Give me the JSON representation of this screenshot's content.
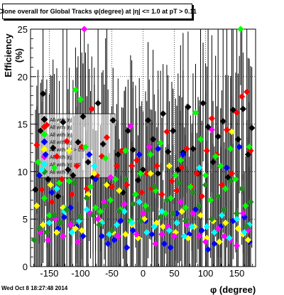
{
  "title": "Clone  overall for Global Tracks φ(degree) at |η| <= 1.0 at pT > 0.11",
  "timestamp": "Wed Oct  8 18:27:48 2014",
  "chart_data": {
    "type": "scatter",
    "title": "Clone  overall for Global Tracks φ(degree) at |η| <= 1.0 at pT > 0.11",
    "xlabel": "φ (degree)",
    "ylabel": "Efficiency (%)",
    "xlim": [
      -180,
      180
    ],
    "ylim": [
      0,
      25
    ],
    "x_ticks": [
      -150,
      -100,
      -50,
      0,
      50,
      100,
      150
    ],
    "y_ticks": [
      0,
      5,
      10,
      15,
      20,
      25
    ],
    "grid": true,
    "legend_position": "left-center",
    "legend_entries": [
      "All with |η|",
      "All with |η|",
      "All with |η|",
      "All with |η|",
      "All with |η| > 0.5",
      "All with |η|",
      "All with |η| > 0",
      "All with |η|"
    ],
    "series": [
      {
        "color": "#000000",
        "points": [
          [
            -172,
            8.1
          ],
          [
            -164,
            14.3
          ],
          [
            -160,
            18.2
          ],
          [
            -152,
            9.2
          ],
          [
            -144,
            12.5
          ],
          [
            -136,
            7.4
          ],
          [
            -128,
            15.2
          ],
          [
            -120,
            10.2
          ],
          [
            -112,
            9.6
          ],
          [
            -104,
            13.1
          ],
          [
            -96,
            15.8
          ],
          [
            -88,
            11.0
          ],
          [
            -80,
            9.4
          ],
          [
            -72,
            17.2
          ],
          [
            -64,
            12.9
          ],
          [
            -56,
            8.6
          ],
          [
            -48,
            15.4
          ],
          [
            -40,
            11.8
          ],
          [
            -32,
            7.8
          ],
          [
            -24,
            14.3
          ],
          [
            -16,
            12.3
          ],
          [
            -8,
            9.1
          ],
          [
            0,
            10.2
          ],
          [
            8,
            15.4
          ],
          [
            16,
            13.4
          ],
          [
            24,
            9.8
          ],
          [
            32,
            16.1
          ],
          [
            40,
            12.1
          ],
          [
            48,
            14.3
          ],
          [
            56,
            10.2
          ],
          [
            64,
            12.0
          ],
          [
            72,
            16.8
          ],
          [
            80,
            12.4
          ],
          [
            88,
            9.8
          ],
          [
            96,
            17.2
          ],
          [
            104,
            14.7
          ],
          [
            112,
            11.0
          ],
          [
            120,
            13.7
          ],
          [
            128,
            15.3
          ],
          [
            136,
            9.4
          ],
          [
            144,
            16.5
          ],
          [
            152,
            13.4
          ],
          [
            160,
            16.6
          ],
          [
            168,
            11.8
          ],
          [
            174,
            14.6
          ]
        ]
      },
      {
        "color": "#ff0000",
        "points": [
          [
            -170,
            12.8
          ],
          [
            -162,
            8.1
          ],
          [
            -154,
            14.9
          ],
          [
            -146,
            6.8
          ],
          [
            -138,
            11.6
          ],
          [
            -130,
            9.2
          ],
          [
            -122,
            13.2
          ],
          [
            -114,
            7.6
          ],
          [
            -106,
            10.6
          ],
          [
            -98,
            12.6
          ],
          [
            -90,
            8.2
          ],
          [
            -82,
            16.6
          ],
          [
            -74,
            9.6
          ],
          [
            -66,
            11.6
          ],
          [
            -58,
            13.6
          ],
          [
            -50,
            8.4
          ],
          [
            -42,
            10.6
          ],
          [
            -34,
            12.2
          ],
          [
            -26,
            8.6
          ],
          [
            -18,
            10.6
          ],
          [
            -10,
            11.2
          ],
          [
            -2,
            7.8
          ],
          [
            6,
            9.8
          ],
          [
            14,
            8.2
          ],
          [
            22,
            10.6
          ],
          [
            30,
            7.6
          ],
          [
            38,
            14.2
          ],
          [
            46,
            9.0
          ],
          [
            54,
            8.0
          ],
          [
            62,
            10.4
          ],
          [
            70,
            12.4
          ],
          [
            78,
            8.4
          ],
          [
            86,
            9.8
          ],
          [
            94,
            7.4
          ],
          [
            102,
            12.2
          ],
          [
            110,
            15.6
          ],
          [
            118,
            11.8
          ],
          [
            126,
            8.6
          ],
          [
            134,
            14.4
          ],
          [
            142,
            9.8
          ],
          [
            150,
            16.2
          ],
          [
            158,
            17.9
          ],
          [
            166,
            18.4
          ],
          [
            172,
            12.2
          ]
        ]
      },
      {
        "color": "#00ff00",
        "points": [
          [
            -168,
            11.0
          ],
          [
            -158,
            7.2
          ],
          [
            -150,
            5.4
          ],
          [
            -142,
            10.4
          ],
          [
            -134,
            8.8
          ],
          [
            -126,
            6.2
          ],
          [
            -118,
            9.0
          ],
          [
            -108,
            18.6
          ],
          [
            -100,
            17.6
          ],
          [
            -92,
            12.6
          ],
          [
            -84,
            8.4
          ],
          [
            -76,
            6.2
          ],
          [
            -68,
            5.8
          ],
          [
            -60,
            11.4
          ],
          [
            -52,
            7.0
          ],
          [
            -44,
            9.2
          ],
          [
            -36,
            6.0
          ],
          [
            -28,
            12.2
          ],
          [
            -20,
            4.8
          ],
          [
            -12,
            7.6
          ],
          [
            -4,
            9.8
          ],
          [
            4,
            6.4
          ],
          [
            12,
            11.8
          ],
          [
            20,
            8.0
          ],
          [
            28,
            13.0
          ],
          [
            36,
            5.6
          ],
          [
            44,
            7.2
          ],
          [
            52,
            9.6
          ],
          [
            60,
            11.2
          ],
          [
            68,
            6.2
          ],
          [
            76,
            8.4
          ],
          [
            84,
            16.2
          ],
          [
            92,
            13.4
          ],
          [
            100,
            9.6
          ],
          [
            108,
            7.0
          ],
          [
            116,
            11.6
          ],
          [
            124,
            10.6
          ],
          [
            132,
            8.2
          ],
          [
            140,
            12.4
          ],
          [
            148,
            9.2
          ],
          [
            156,
            25.0
          ],
          [
            164,
            6.4
          ],
          [
            170,
            12.6
          ]
        ]
      },
      {
        "color": "#0000ff",
        "points": [
          [
            -166,
            9.6
          ],
          [
            -156,
            11.8
          ],
          [
            -146,
            7.8
          ],
          [
            -136,
            4.0
          ],
          [
            -126,
            5.2
          ],
          [
            -116,
            6.2
          ],
          [
            -106,
            4.2
          ],
          [
            -96,
            3.2
          ],
          [
            -86,
            11.8
          ],
          [
            -76,
            9.2
          ],
          [
            -66,
            3.2
          ],
          [
            -56,
            2.4
          ],
          [
            -46,
            2.8
          ],
          [
            -36,
            4.8
          ],
          [
            -26,
            2.0
          ],
          [
            -16,
            3.8
          ],
          [
            -6,
            11.8
          ],
          [
            4,
            4.8
          ],
          [
            14,
            3.4
          ],
          [
            24,
            12.4
          ],
          [
            34,
            2.4
          ],
          [
            44,
            2.0
          ],
          [
            54,
            5.6
          ],
          [
            64,
            11.8
          ],
          [
            74,
            3.4
          ],
          [
            84,
            6.0
          ],
          [
            94,
            3.8
          ],
          [
            104,
            1.8
          ],
          [
            114,
            2.4
          ],
          [
            124,
            4.2
          ],
          [
            134,
            10.4
          ],
          [
            144,
            4.8
          ],
          [
            154,
            12.6
          ],
          [
            162,
            5.2
          ],
          [
            170,
            2.6
          ]
        ]
      },
      {
        "color": "#ffff00",
        "points": [
          [
            -170,
            6.4
          ],
          [
            -160,
            4.4
          ],
          [
            -148,
            8.6
          ],
          [
            -138,
            3.6
          ],
          [
            -128,
            6.2
          ],
          [
            -118,
            12.2
          ],
          [
            -108,
            4.0
          ],
          [
            -98,
            3.8
          ],
          [
            -88,
            7.6
          ],
          [
            -78,
            9.8
          ],
          [
            -68,
            4.8
          ],
          [
            -58,
            8.6
          ],
          [
            -48,
            3.6
          ],
          [
            -38,
            8.0
          ],
          [
            -28,
            3.4
          ],
          [
            -18,
            4.4
          ],
          [
            -8,
            3.0
          ],
          [
            2,
            5.0
          ],
          [
            12,
            9.8
          ],
          [
            22,
            4.6
          ],
          [
            32,
            4.2
          ],
          [
            42,
            10.6
          ],
          [
            52,
            3.6
          ],
          [
            62,
            5.8
          ],
          [
            72,
            3.0
          ],
          [
            82,
            4.2
          ],
          [
            92,
            5.4
          ],
          [
            102,
            3.0
          ],
          [
            112,
            4.8
          ],
          [
            122,
            2.6
          ],
          [
            132,
            4.6
          ],
          [
            142,
            14.2
          ],
          [
            152,
            4.0
          ],
          [
            160,
            3.4
          ],
          [
            168,
            2.8
          ]
        ]
      },
      {
        "color": "#ff00ff",
        "points": [
          [
            -164,
            3.6
          ],
          [
            -152,
            2.8
          ],
          [
            -140,
            5.0
          ],
          [
            -128,
            3.2
          ],
          [
            -116,
            4.4
          ],
          [
            -104,
            2.6
          ],
          [
            -94,
            25.0
          ],
          [
            -84,
            5.6
          ],
          [
            -72,
            5.0
          ],
          [
            -62,
            6.8
          ],
          [
            -52,
            9.4
          ],
          [
            -40,
            3.2
          ],
          [
            -30,
            6.6
          ],
          [
            -20,
            14.8
          ],
          [
            -10,
            3.4
          ],
          [
            0,
            5.6
          ],
          [
            10,
            12.6
          ],
          [
            20,
            2.4
          ],
          [
            30,
            3.4
          ],
          [
            40,
            4.2
          ],
          [
            50,
            3.2
          ],
          [
            60,
            6.8
          ],
          [
            70,
            4.4
          ],
          [
            80,
            5.6
          ],
          [
            90,
            3.2
          ],
          [
            100,
            2.6
          ],
          [
            110,
            14.4
          ],
          [
            120,
            4.0
          ],
          [
            130,
            3.2
          ],
          [
            140,
            2.8
          ],
          [
            150,
            2.2
          ],
          [
            160,
            5.6
          ],
          [
            168,
            3.8
          ]
        ]
      },
      {
        "color": "#00ffff",
        "points": [
          [
            -162,
            10.2
          ],
          [
            -150,
            4.6
          ],
          [
            -138,
            8.2
          ],
          [
            -126,
            5.8
          ],
          [
            -114,
            3.6
          ],
          [
            -102,
            4.8
          ],
          [
            -90,
            6.0
          ],
          [
            -78,
            10.6
          ],
          [
            -66,
            4.6
          ],
          [
            -54,
            3.4
          ],
          [
            -42,
            4.4
          ],
          [
            -30,
            5.8
          ],
          [
            -18,
            4.6
          ],
          [
            -6,
            6.8
          ],
          [
            6,
            3.6
          ],
          [
            18,
            4.2
          ],
          [
            30,
            5.8
          ],
          [
            42,
            3.8
          ],
          [
            54,
            4.6
          ],
          [
            66,
            3.2
          ],
          [
            78,
            4.2
          ],
          [
            90,
            10.4
          ],
          [
            102,
            4.2
          ],
          [
            114,
            3.6
          ],
          [
            126,
            5.4
          ],
          [
            138,
            3.0
          ],
          [
            150,
            5.0
          ],
          [
            162,
            3.6
          ],
          [
            170,
            4.4
          ]
        ]
      },
      {
        "color": "#228b22",
        "points": [
          [
            -174,
            2.8
          ],
          [
            -166,
            4.0
          ],
          [
            -154,
            3.6
          ],
          [
            -142,
            5.4
          ],
          [
            -132,
            4.6
          ],
          [
            -122,
            6.0
          ],
          [
            -110,
            8.8
          ],
          [
            -100,
            5.2
          ],
          [
            -90,
            7.2
          ],
          [
            -80,
            5.4
          ],
          [
            -70,
            4.4
          ],
          [
            -60,
            6.4
          ],
          [
            -50,
            3.8
          ],
          [
            -38,
            5.8
          ],
          [
            -28,
            9.2
          ],
          [
            -16,
            6.6
          ],
          [
            -4,
            4.8
          ],
          [
            8,
            6.0
          ],
          [
            18,
            8.4
          ],
          [
            28,
            5.2
          ],
          [
            38,
            7.0
          ],
          [
            48,
            5.6
          ],
          [
            58,
            8.8
          ],
          [
            68,
            4.8
          ],
          [
            80,
            7.8
          ],
          [
            90,
            6.4
          ],
          [
            100,
            8.6
          ],
          [
            110,
            5.0
          ],
          [
            120,
            7.4
          ],
          [
            130,
            6.0
          ],
          [
            140,
            9.0
          ],
          [
            150,
            5.6
          ],
          [
            158,
            8.2
          ],
          [
            166,
            4.2
          ],
          [
            172,
            6.8
          ]
        ]
      }
    ]
  }
}
